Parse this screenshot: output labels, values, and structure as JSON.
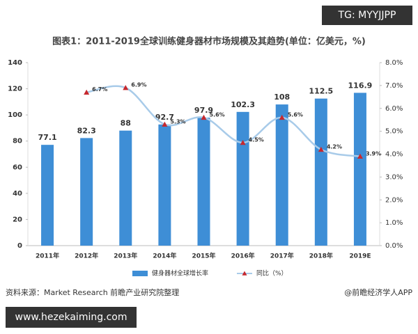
{
  "watermark": "TG: MYYJJPP",
  "chart_data": {
    "type": "bar-line",
    "title": "图表1：2011-2019全球训练健身器材市场规模及其趋势(单位：亿美元，%)",
    "categories": [
      "2011年",
      "2012年",
      "2013年",
      "2014年",
      "2015年",
      "2016年",
      "2017年",
      "2018年",
      "2019E"
    ],
    "series": [
      {
        "name": "健身器材全球增长率",
        "type": "bar",
        "color": "#3e8ed6",
        "values": [
          77.1,
          82.3,
          88,
          92.7,
          97.9,
          102.3,
          108,
          112.5,
          116.9
        ]
      },
      {
        "name": "同比（%）",
        "type": "line",
        "axis": "y2",
        "color": "#a8cbe9",
        "marker_color": "#c6282e",
        "values": [
          null,
          6.7,
          6.9,
          5.3,
          5.6,
          4.5,
          5.6,
          4.2,
          3.9
        ],
        "value_labels": [
          null,
          "6.7%",
          "6.9%",
          "5.3%",
          "5.6%",
          "4.5%",
          "5.6%",
          "4.2%",
          "3.9%"
        ]
      }
    ],
    "ylim": [
      0,
      140
    ],
    "yticks": [
      0,
      20,
      40,
      60,
      80,
      100,
      120,
      140
    ],
    "y2lim": [
      0,
      8
    ],
    "y2ticks": [
      {
        "value": 0,
        "label": "0.0%"
      },
      {
        "value": 1,
        "label": "1.0%"
      },
      {
        "value": 2,
        "label": "2.0%"
      },
      {
        "value": 3,
        "label": "3.0%"
      },
      {
        "value": 4,
        "label": "4.0%"
      },
      {
        "value": 5,
        "label": "5.0%"
      },
      {
        "value": 6,
        "label": "6.0%"
      },
      {
        "value": 7,
        "label": "7.0%"
      },
      {
        "value": 8,
        "label": "8.0%"
      }
    ],
    "grid": false,
    "legend": "bottom"
  },
  "source": "资料来源：Market Research 前瞻产业研究院整理",
  "credit": "@前瞻经济学人APP",
  "footer_url": "www.hezekaiming.com"
}
